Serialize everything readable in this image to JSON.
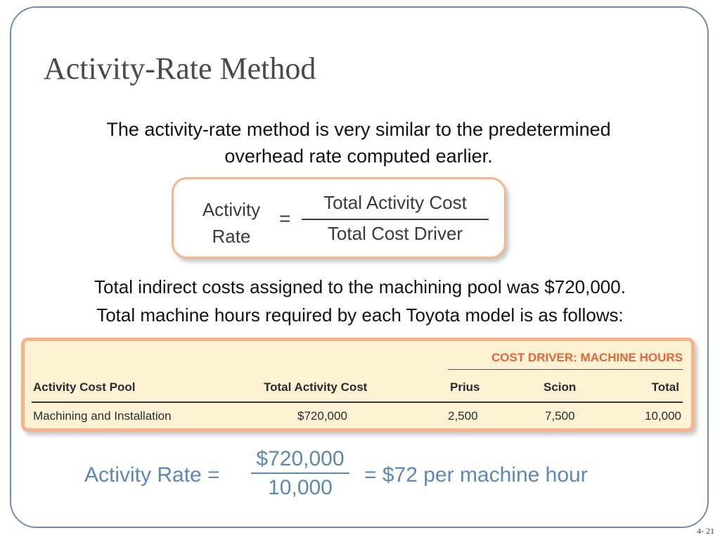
{
  "title": "Activity-Rate Method",
  "intro": "The activity-rate method is very similar to the predetermined overhead rate computed earlier.",
  "formula": {
    "left_line1": "Activity",
    "left_line2": "Rate",
    "equals": "=",
    "numerator": "Total Activity Cost",
    "denominator": "Total Cost Driver"
  },
  "description": {
    "line1": "Total indirect costs assigned to the machining pool was $720,000.",
    "line2": "Total machine hours required by each Toyota model is as follows:"
  },
  "table": {
    "group_header": "COST DRIVER: MACHINE HOURS",
    "columns": [
      "Activity Cost Pool",
      "Total Activity Cost",
      "Prius",
      "Scion",
      "Total"
    ],
    "row": [
      "Machining and Installation",
      "$720,000",
      "2,500",
      "7,500",
      "10,000"
    ]
  },
  "calculation": {
    "label": "Activity Rate =",
    "numerator": "$720,000",
    "denominator": "10,000",
    "result": "=  $72 per machine hour"
  },
  "page_number": "4- 21",
  "colors": {
    "frame_border": "#6e8fad",
    "box_border": "#f6b38c",
    "table_fill": "#fdf3d4",
    "driver_header": "#e2663a",
    "calculation_text": "#5b88b4"
  }
}
